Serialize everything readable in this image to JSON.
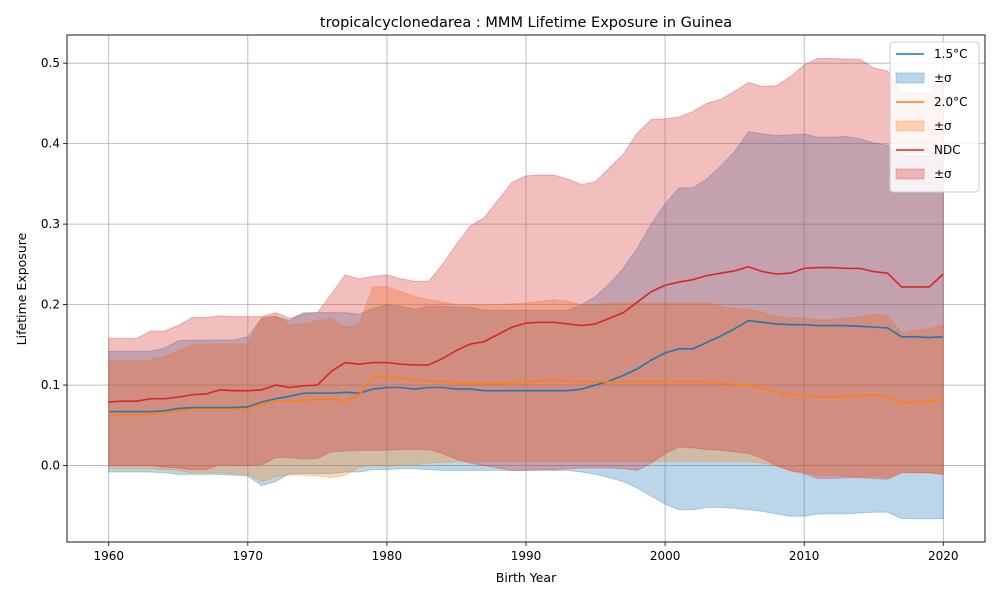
{
  "chart_data": {
    "type": "area",
    "title": "tropicalcyclonedarea : MMM Lifetime Exposure in Guinea",
    "xlabel": "Birth Year",
    "ylabel": "Lifetime Exposure",
    "xlim": [
      1957,
      2023
    ],
    "ylim": [
      -0.095,
      0.535
    ],
    "xticks": [
      1960,
      1970,
      1980,
      1990,
      2000,
      2010,
      2020
    ],
    "yticks": [
      0.0,
      0.1,
      0.2,
      0.3,
      0.4,
      0.5
    ],
    "ytick_labels": [
      "0.0",
      "0.1",
      "0.2",
      "0.3",
      "0.4",
      "0.5"
    ],
    "grid": true,
    "legend_position": "top-right",
    "x": [
      1960,
      1961,
      1962,
      1963,
      1964,
      1965,
      1966,
      1967,
      1968,
      1969,
      1970,
      1971,
      1972,
      1973,
      1974,
      1975,
      1976,
      1977,
      1978,
      1979,
      1980,
      1981,
      1982,
      1983,
      1984,
      1985,
      1986,
      1987,
      1988,
      1989,
      1990,
      1991,
      1992,
      1993,
      1994,
      1995,
      1996,
      1997,
      1998,
      1999,
      2000,
      2001,
      2002,
      2003,
      2004,
      2005,
      2006,
      2007,
      2008,
      2009,
      2010,
      2011,
      2012,
      2013,
      2014,
      2015,
      2016,
      2017,
      2018,
      2019,
      2020
    ],
    "series": [
      {
        "name": "1.5°C",
        "band_label": "±σ",
        "color": "#1f77b4",
        "mean": [
          0.067,
          0.067,
          0.067,
          0.067,
          0.068,
          0.071,
          0.072,
          0.072,
          0.072,
          0.072,
          0.073,
          0.079,
          0.083,
          0.086,
          0.09,
          0.09,
          0.09,
          0.091,
          0.09,
          0.095,
          0.097,
          0.097,
          0.095,
          0.097,
          0.097,
          0.095,
          0.095,
          0.093,
          0.093,
          0.093,
          0.093,
          0.093,
          0.093,
          0.093,
          0.095,
          0.1,
          0.105,
          0.112,
          0.12,
          0.131,
          0.14,
          0.145,
          0.145,
          0.153,
          0.161,
          0.17,
          0.18,
          0.178,
          0.176,
          0.175,
          0.175,
          0.174,
          0.174,
          0.174,
          0.173,
          0.172,
          0.171,
          0.16,
          0.16,
          0.159,
          0.16
        ],
        "upper": [
          0.142,
          0.142,
          0.142,
          0.142,
          0.146,
          0.155,
          0.156,
          0.156,
          0.156,
          0.156,
          0.16,
          0.183,
          0.185,
          0.18,
          0.19,
          0.19,
          0.19,
          0.19,
          0.188,
          0.195,
          0.2,
          0.198,
          0.194,
          0.198,
          0.198,
          0.197,
          0.197,
          0.193,
          0.193,
          0.193,
          0.193,
          0.193,
          0.193,
          0.193,
          0.2,
          0.21,
          0.226,
          0.245,
          0.27,
          0.3,
          0.325,
          0.345,
          0.345,
          0.356,
          0.372,
          0.39,
          0.415,
          0.412,
          0.41,
          0.411,
          0.412,
          0.408,
          0.408,
          0.409,
          0.406,
          0.401,
          0.398,
          0.385,
          0.385,
          0.385,
          0.387
        ],
        "lower": [
          -0.008,
          -0.008,
          -0.008,
          -0.008,
          -0.009,
          -0.011,
          -0.011,
          -0.011,
          -0.011,
          -0.012,
          -0.013,
          -0.025,
          -0.02,
          -0.01,
          -0.01,
          -0.01,
          -0.01,
          -0.008,
          -0.008,
          -0.005,
          -0.005,
          -0.004,
          -0.004,
          -0.005,
          -0.006,
          -0.006,
          -0.006,
          -0.006,
          -0.006,
          -0.006,
          -0.006,
          -0.006,
          -0.006,
          -0.006,
          -0.008,
          -0.011,
          -0.015,
          -0.02,
          -0.028,
          -0.038,
          -0.048,
          -0.055,
          -0.055,
          -0.052,
          -0.052,
          -0.053,
          -0.055,
          -0.057,
          -0.06,
          -0.063,
          -0.063,
          -0.06,
          -0.06,
          -0.06,
          -0.059,
          -0.058,
          -0.058,
          -0.066,
          -0.066,
          -0.066,
          -0.066
        ]
      },
      {
        "name": "2.0°C",
        "band_label": "±σ",
        "color": "#ff7f0e",
        "mean": [
          0.062,
          0.063,
          0.063,
          0.064,
          0.066,
          0.068,
          0.07,
          0.07,
          0.07,
          0.07,
          0.07,
          0.077,
          0.08,
          0.08,
          0.081,
          0.082,
          0.083,
          0.08,
          0.088,
          0.111,
          0.11,
          0.109,
          0.106,
          0.105,
          0.104,
          0.103,
          0.102,
          0.102,
          0.102,
          0.103,
          0.104,
          0.105,
          0.106,
          0.105,
          0.104,
          0.104,
          0.104,
          0.104,
          0.104,
          0.104,
          0.104,
          0.104,
          0.104,
          0.104,
          0.102,
          0.101,
          0.1,
          0.096,
          0.092,
          0.088,
          0.088,
          0.085,
          0.085,
          0.086,
          0.087,
          0.088,
          0.085,
          0.078,
          0.079,
          0.08,
          0.082
        ],
        "upper": [
          0.13,
          0.13,
          0.13,
          0.131,
          0.136,
          0.142,
          0.15,
          0.15,
          0.151,
          0.151,
          0.151,
          0.184,
          0.186,
          0.175,
          0.176,
          0.18,
          0.183,
          0.172,
          0.175,
          0.222,
          0.222,
          0.216,
          0.21,
          0.206,
          0.203,
          0.2,
          0.2,
          0.2,
          0.2,
          0.201,
          0.202,
          0.204,
          0.206,
          0.204,
          0.2,
          0.2,
          0.202,
          0.202,
          0.202,
          0.202,
          0.202,
          0.202,
          0.202,
          0.202,
          0.198,
          0.195,
          0.194,
          0.19,
          0.185,
          0.183,
          0.183,
          0.181,
          0.181,
          0.183,
          0.185,
          0.188,
          0.186,
          0.165,
          0.168,
          0.17,
          0.175
        ],
        "lower": [
          -0.004,
          -0.004,
          -0.004,
          -0.004,
          -0.005,
          -0.006,
          -0.009,
          -0.009,
          -0.009,
          -0.01,
          -0.011,
          -0.02,
          -0.014,
          -0.012,
          -0.012,
          -0.013,
          -0.015,
          -0.012,
          -0.002,
          0.0,
          -0.001,
          0.001,
          0.001,
          0.003,
          0.004,
          0.005,
          0.005,
          0.005,
          0.005,
          0.005,
          0.005,
          0.005,
          0.005,
          0.005,
          0.005,
          0.005,
          0.005,
          0.005,
          0.005,
          0.005,
          0.005,
          0.005,
          0.005,
          0.005,
          0.005,
          0.005,
          0.005,
          0.003,
          0.0,
          -0.007,
          -0.008,
          -0.012,
          -0.012,
          -0.013,
          -0.014,
          -0.013,
          -0.015,
          -0.008,
          -0.009,
          -0.009,
          -0.011
        ]
      },
      {
        "name": "NDC",
        "band_label": "±σ",
        "color": "#d62728",
        "mean": [
          0.079,
          0.08,
          0.08,
          0.083,
          0.083,
          0.085,
          0.088,
          0.089,
          0.094,
          0.093,
          0.093,
          0.094,
          0.1,
          0.097,
          0.099,
          0.1,
          0.117,
          0.128,
          0.126,
          0.128,
          0.128,
          0.126,
          0.125,
          0.125,
          0.133,
          0.143,
          0.151,
          0.154,
          0.163,
          0.172,
          0.177,
          0.178,
          0.178,
          0.176,
          0.174,
          0.176,
          0.183,
          0.19,
          0.203,
          0.216,
          0.224,
          0.228,
          0.231,
          0.236,
          0.239,
          0.242,
          0.247,
          0.241,
          0.238,
          0.239,
          0.245,
          0.246,
          0.246,
          0.245,
          0.245,
          0.241,
          0.239,
          0.222,
          0.222,
          0.222,
          0.238
        ],
        "upper": [
          0.158,
          0.158,
          0.158,
          0.167,
          0.167,
          0.174,
          0.184,
          0.184,
          0.186,
          0.185,
          0.185,
          0.185,
          0.19,
          0.183,
          0.188,
          0.19,
          0.213,
          0.237,
          0.232,
          0.235,
          0.237,
          0.232,
          0.229,
          0.229,
          0.25,
          0.275,
          0.298,
          0.308,
          0.33,
          0.352,
          0.36,
          0.361,
          0.361,
          0.356,
          0.349,
          0.353,
          0.37,
          0.387,
          0.413,
          0.43,
          0.431,
          0.433,
          0.44,
          0.45,
          0.455,
          0.465,
          0.476,
          0.471,
          0.472,
          0.483,
          0.498,
          0.506,
          0.506,
          0.505,
          0.505,
          0.494,
          0.49,
          0.463,
          0.463,
          0.463,
          0.486
        ],
        "lower": [
          0.0,
          0.0,
          0.0,
          0.0,
          -0.002,
          -0.003,
          -0.005,
          -0.005,
          0.001,
          0.0,
          0.0,
          0.001,
          0.01,
          0.01,
          0.008,
          0.009,
          0.017,
          0.018,
          0.019,
          0.019,
          0.019,
          0.02,
          0.02,
          0.02,
          0.015,
          0.008,
          0.003,
          0.0,
          -0.003,
          -0.006,
          -0.006,
          -0.005,
          -0.005,
          -0.004,
          -0.003,
          -0.003,
          -0.003,
          -0.004,
          -0.006,
          0.003,
          0.015,
          0.023,
          0.022,
          0.02,
          0.019,
          0.017,
          0.015,
          0.009,
          0.0,
          -0.006,
          -0.01,
          -0.016,
          -0.016,
          -0.015,
          -0.015,
          -0.016,
          -0.017,
          -0.009,
          -0.009,
          -0.009,
          -0.011
        ]
      }
    ]
  }
}
